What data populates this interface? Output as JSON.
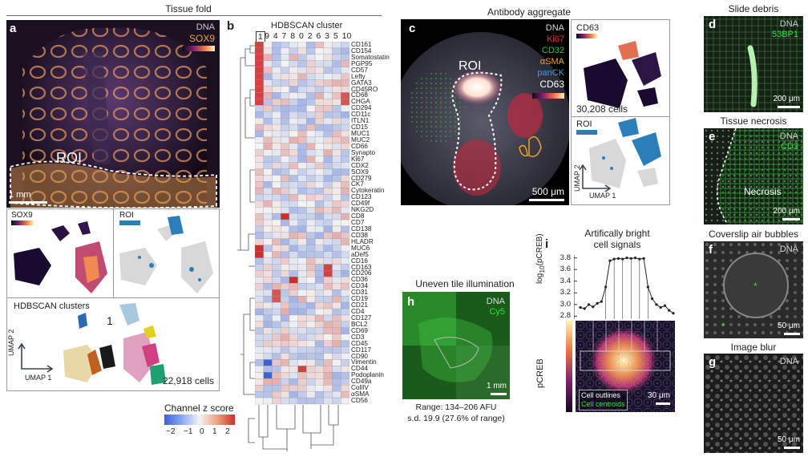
{
  "headers": {
    "tissue_fold": "Tissue fold",
    "antibody_aggregate": "Antibody aggregate",
    "slide_debris": "Slide debris",
    "tissue_necrosis": "Tissue necrosis",
    "coverslip_air_bubbles": "Coverslip air bubbles",
    "image_blur": "Image blur",
    "uneven_tile": "Uneven tile illumination",
    "bright_signals_line1": "Artifically bright",
    "bright_signals_line2": "cell signals"
  },
  "panel_a": {
    "label": "a",
    "dna": "DNA",
    "sox9": "SOX9",
    "roi": "ROI",
    "scale": "1 mm",
    "umap_sox9": "SOX9",
    "umap_roi": "ROI",
    "hdbscan_title": "HDBSCAN clusters",
    "cluster_one": "1",
    "umap1": "UMAP 1",
    "umap2": "UMAP 2",
    "cells": "22,918 cells"
  },
  "panel_b": {
    "label": "b",
    "title": "HDBSCAN cluster",
    "columns": [
      "1",
      "9",
      "4",
      "7",
      "8",
      "0",
      "2",
      "6",
      "3",
      "5",
      "10"
    ],
    "rows": [
      "CD161",
      "CD154",
      "Somatostatin",
      "PGP95",
      "CD57",
      "Lefty",
      "GATA3",
      "CD45RO",
      "CD68",
      "CHGA",
      "CD294",
      "CD11c",
      "ITLN1",
      "CD15",
      "MUC1",
      "MUC2",
      "CD66",
      "Synapto",
      "Ki67",
      "CDX2",
      "SOX9",
      "CD279",
      "CK7",
      "Cytokeratin",
      "CD123",
      "CD49f",
      "NKG2D",
      "CD8",
      "CD7",
      "CD138",
      "CD38",
      "HLADR",
      "MUC6",
      "aDef5",
      "CD16",
      "CD163",
      "CD206",
      "CD36",
      "CD34",
      "CD31",
      "CD19",
      "CD21",
      "CD4",
      "CD127",
      "BCL2",
      "CD69",
      "CD3",
      "CD45",
      "CD117",
      "CD90",
      "Vimentin",
      "CD44",
      "Podoplanin",
      "CD49a",
      "CollIV",
      "αSMA",
      "CD56"
    ],
    "colorbar_title": "Channel z score",
    "colorbar_ticks": [
      "−2",
      "−1",
      "0",
      "1",
      "2"
    ],
    "colors": {
      "low": "#3b62d6",
      "mid": "#f4f4f4",
      "high": "#c9302c"
    }
  },
  "panel_c": {
    "label": "c",
    "channels": [
      {
        "name": "DNA",
        "color": "#d9d9d9"
      },
      {
        "name": "Ki67",
        "color": "#e8303c"
      },
      {
        "name": "CD32",
        "color": "#2fbf3a"
      },
      {
        "name": "αSMA",
        "color": "#f0a030"
      },
      {
        "name": "panCK",
        "color": "#3aa0e0"
      },
      {
        "name": "CD63",
        "color": "#ffffff"
      }
    ],
    "roi": "ROI",
    "scale": "500 μm",
    "umap_cd63": "CD63",
    "cells": "30,208 cells",
    "umap_roi": "ROI",
    "umap1": "UMAP 1",
    "umap2": "UMAP 2"
  },
  "panel_d": {
    "label": "d",
    "dna": "DNA",
    "marker": "53BP1",
    "scale": "200 μm"
  },
  "panel_e": {
    "label": "e",
    "dna": "DNA",
    "marker": "CD3",
    "necrosis": "Necrosis",
    "scale": "200 μm"
  },
  "panel_f": {
    "label": "f",
    "dna": "DNA",
    "scale": "50 μm"
  },
  "panel_g": {
    "label": "g",
    "dna": "DNA",
    "scale": "50 μm"
  },
  "panel_h": {
    "label": "h",
    "dna": "DNA",
    "cy5": "Cy5",
    "scale": "1 mm",
    "range": "Range: 134–206 AFU",
    "sd": "s.d. 19.9 (27.6% of range)"
  },
  "panel_i": {
    "label": "i",
    "ylabel_top": "log10(pCREB)",
    "ylabel_bottom": "pCREB",
    "yticks": [
      "3.8",
      "3.6",
      "3.4",
      "3.2",
      "3.0",
      "2.8"
    ],
    "legend_outlines": "Cell outlines",
    "legend_centroids": "Cell centroids",
    "scale": "30 μm",
    "profile": [
      2.95,
      2.93,
      3.0,
      2.96,
      3.02,
      3.05,
      3.3,
      3.75,
      3.78,
      3.79,
      3.78,
      3.8,
      3.79,
      3.8,
      3.78,
      3.79,
      3.3,
      3.1,
      3.0,
      2.95,
      2.98,
      2.9,
      2.85
    ]
  }
}
